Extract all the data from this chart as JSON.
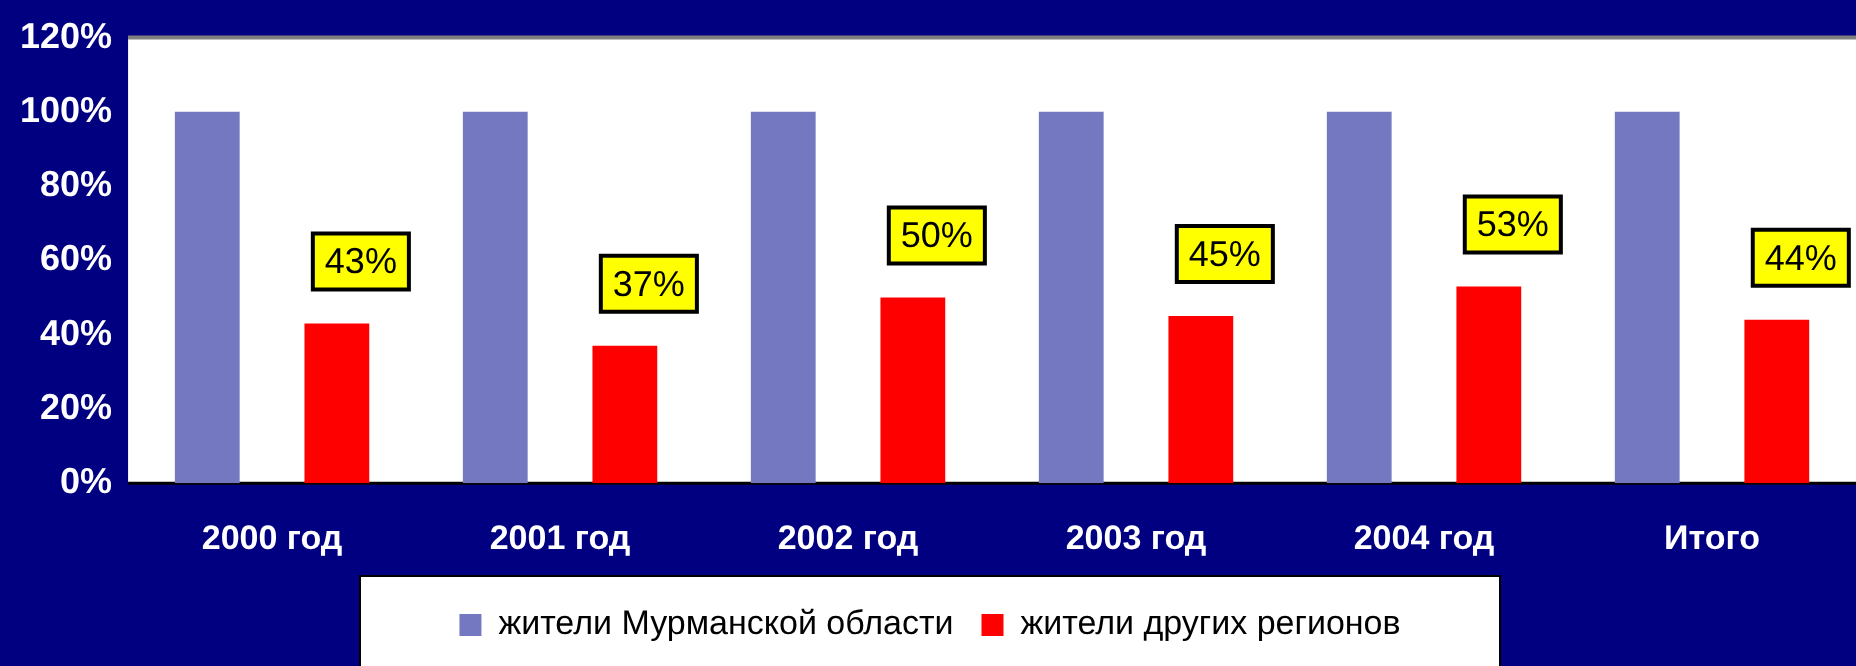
{
  "chart_data": {
    "type": "bar",
    "categories": [
      "2000 год",
      "2001 год",
      "2002 год",
      "2003 год",
      "2004 год",
      "Итого"
    ],
    "series": [
      {
        "name": "жители Мурманской области",
        "color": "#7478c0",
        "values": [
          100,
          100,
          100,
          100,
          100,
          100
        ]
      },
      {
        "name": "жители других регионов",
        "color": "#ff0000",
        "values": [
          43,
          37,
          50,
          45,
          53,
          44
        ],
        "value_labels": [
          "43%",
          "37%",
          "50%",
          "45%",
          "53%",
          "44%"
        ]
      }
    ],
    "ylim": [
      0,
      120
    ],
    "yticks": [
      {
        "value": 0,
        "label": "0%"
      },
      {
        "value": 20,
        "label": "20%"
      },
      {
        "value": 40,
        "label": "40%"
      },
      {
        "value": 60,
        "label": "60%"
      },
      {
        "value": 80,
        "label": "80%"
      },
      {
        "value": 100,
        "label": "100%"
      },
      {
        "value": 120,
        "label": "120%"
      }
    ],
    "grid": false,
    "legend": "bottom"
  }
}
